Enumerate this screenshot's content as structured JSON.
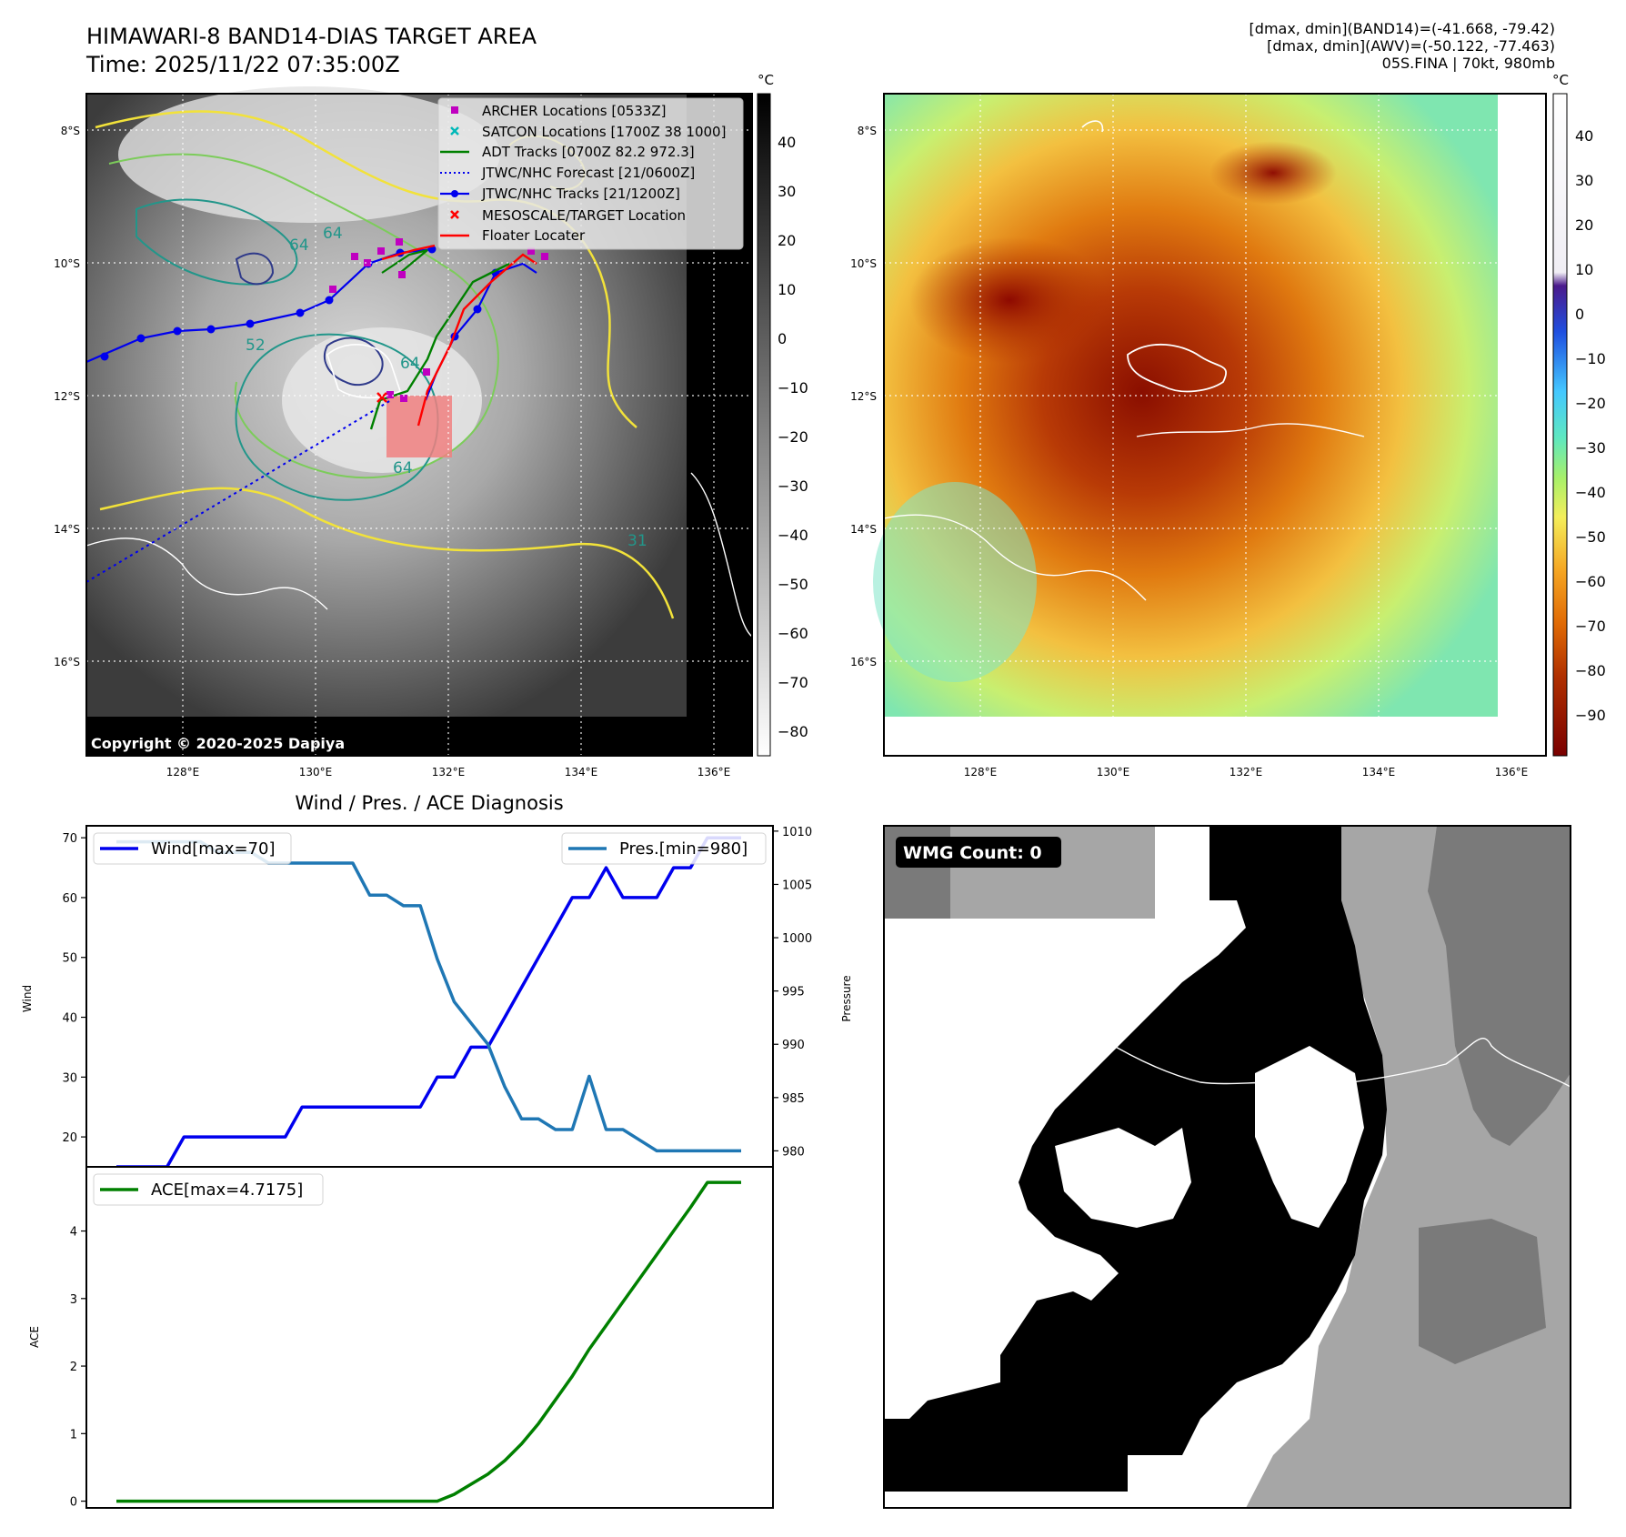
{
  "header": {
    "title": "HIMAWARI-8 BAND14-DIAS TARGET AREA",
    "time": "Time: 2025/11/22 07:35:00Z",
    "dmax_band14": "[dmax, dmin](BAND14)=(-41.668, -79.42)",
    "dmax_awv": "[dmax, dmin](AWV)=(-50.122, -77.463)",
    "storm": "05S.FINA | 70kt, 980mb"
  },
  "map_axes": {
    "lon_ticks": [
      "128°E",
      "130°E",
      "132°E",
      "134°E",
      "136°E"
    ],
    "lat_ticks": [
      "8°S",
      "10°S",
      "12°S",
      "14°S",
      "16°S"
    ]
  },
  "left_map": {
    "colorbar_unit": "°C",
    "colorbar_ticks": [
      "40",
      "30",
      "20",
      "10",
      "0",
      "−10",
      "−20",
      "−30",
      "−40",
      "−50",
      "−60",
      "−70",
      "−80"
    ],
    "copyright": "Copyright © 2020-2025 Dapiya",
    "contour_labels": [
      "64",
      "64",
      "64",
      "64",
      "52",
      "31"
    ],
    "legend": [
      {
        "label": "ARCHER Locations [0533Z]",
        "color": "#c000c0"
      },
      {
        "label": "SATCON Locations [1700Z 38 1000]",
        "color": "#00b8b8"
      },
      {
        "label": "ADT Tracks [0700Z 82.2 972.3]",
        "color": "#008000"
      },
      {
        "label": "JTWC/NHC Forecast [21/0600Z]",
        "color": "#0000ff"
      },
      {
        "label": "JTWC/NHC Tracks [21/1200Z]",
        "color": "#0000ff"
      },
      {
        "label": "MESOSCALE/TARGET Location",
        "color": "#ff0000"
      },
      {
        "label": "Floater Locater",
        "color": "#ff0000"
      }
    ]
  },
  "right_map": {
    "colorbar_unit": "°C",
    "colorbar_ticks": [
      "40",
      "30",
      "20",
      "10",
      "0",
      "−10",
      "−20",
      "−30",
      "−40",
      "−50",
      "−60",
      "−70",
      "−80",
      "−90"
    ]
  },
  "wmg": {
    "badge": "WMG Count: 0"
  },
  "chart_data": [
    {
      "type": "line",
      "title": "Wind / Pres. / ACE Diagnosis",
      "ylabel": "Wind",
      "y2label": "Pressure",
      "ylim": [
        15,
        72
      ],
      "y2lim": [
        978.5,
        1010.5
      ],
      "yticks": [
        "20",
        "30",
        "40",
        "50",
        "60",
        "70"
      ],
      "y2ticks": [
        "980",
        "985",
        "990",
        "995",
        "1000",
        "1005",
        "1010"
      ],
      "x": [
        0,
        1,
        2,
        3,
        4,
        5,
        6,
        7,
        8,
        9,
        10,
        11,
        12,
        13,
        14,
        15,
        16,
        17,
        18,
        19,
        20,
        21,
        22,
        23,
        24,
        25,
        26,
        27,
        28,
        29,
        30,
        31,
        32,
        33,
        34,
        35,
        36,
        37
      ],
      "series": [
        {
          "name": "Wind[max=70]",
          "color": "#0000ee",
          "axis": "left",
          "values": [
            15,
            15,
            15,
            15,
            20,
            20,
            20,
            20,
            20,
            20,
            20,
            25,
            25,
            25,
            25,
            25,
            25,
            25,
            25,
            30,
            30,
            35,
            35,
            40,
            45,
            50,
            55,
            60,
            60,
            65,
            60,
            60,
            60,
            65,
            65,
            70,
            70,
            70
          ]
        },
        {
          "name": "Pres.[min=980]",
          "color": "#1f77b4",
          "axis": "right",
          "values": [
            1009,
            1009,
            1009,
            1009,
            1009,
            1009,
            1008,
            1008,
            1008,
            1007,
            1007,
            1007,
            1007,
            1007,
            1007,
            1004,
            1004,
            1003,
            1003,
            998,
            994,
            992,
            990,
            986,
            983,
            983,
            982,
            982,
            987,
            982,
            982,
            981,
            980,
            980,
            980,
            980,
            980,
            980
          ]
        }
      ]
    },
    {
      "type": "line",
      "ylabel": "ACE",
      "ylim": [
        -0.1,
        4.95
      ],
      "yticks": [
        "0",
        "1",
        "2",
        "3",
        "4"
      ],
      "x": [
        0,
        1,
        2,
        3,
        4,
        5,
        6,
        7,
        8,
        9,
        10,
        11,
        12,
        13,
        14,
        15,
        16,
        17,
        18,
        19,
        20,
        21,
        22,
        23,
        24,
        25,
        26,
        27,
        28,
        29,
        30,
        31,
        32,
        33,
        34,
        35,
        36,
        37
      ],
      "series": [
        {
          "name": "ACE[max=4.7175]",
          "color": "#008000",
          "axis": "left",
          "values": [
            0,
            0,
            0,
            0,
            0,
            0,
            0,
            0,
            0,
            0,
            0,
            0,
            0,
            0,
            0,
            0,
            0,
            0,
            0,
            0,
            0.1,
            0.25,
            0.4,
            0.6,
            0.85,
            1.15,
            1.5,
            1.85,
            2.25,
            2.6,
            2.95,
            3.3,
            3.65,
            4.0,
            4.35,
            4.72,
            4.72,
            4.72
          ]
        }
      ]
    }
  ]
}
